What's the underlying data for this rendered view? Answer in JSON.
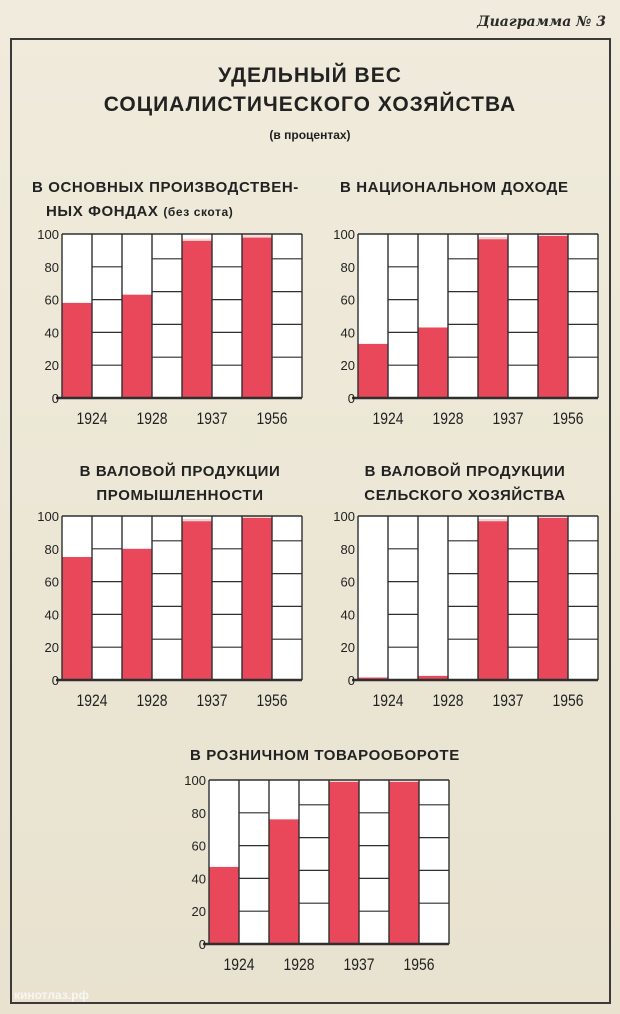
{
  "header": {
    "diagram_number": "Диаграмма № 3",
    "title_line1": "УДЕЛЬНЫЙ ВЕС",
    "title_line2": "СОЦИАЛИСТИЧЕСКОГО ХОЗЯЙСТВА",
    "subtitle": "(в процентах)"
  },
  "watermark": "кинотлаз.рф",
  "colors": {
    "bar": "#e8485a",
    "bar_top": "#f7d6d6",
    "grid": "#2f2f2f",
    "paper": "#ffffff"
  },
  "chart_data": [
    {
      "type": "bar",
      "title_lines": [
        "В ОСНОВНЫХ ПРОИЗВОДСТВЕН-",
        "НЫХ  ФОНДАХ",
        "(без скота)"
      ],
      "categories": [
        "1924",
        "1928",
        "1937",
        "1956"
      ],
      "values": [
        58,
        63,
        97,
        99
      ],
      "ylim": [
        0,
        100
      ],
      "yticks": [
        "0",
        "20",
        "40",
        "60",
        "80",
        "100"
      ],
      "grid": true
    },
    {
      "type": "bar",
      "title_lines": [
        "В НАЦИОНАЛЬНОМ ДОХОДЕ"
      ],
      "categories": [
        "1924",
        "1928",
        "1937",
        "1956"
      ],
      "values": [
        33,
        43,
        98,
        100
      ],
      "ylim": [
        0,
        100
      ],
      "yticks": [
        "0",
        "20",
        "40",
        "60",
        "80",
        "100"
      ],
      "grid": true
    },
    {
      "type": "bar",
      "title_lines": [
        "В ВАЛОВОЙ ПРОДУКЦИИ",
        "ПРОМЫШЛЕННОСТИ"
      ],
      "categories": [
        "1924",
        "1928",
        "1937",
        "1956"
      ],
      "values": [
        75,
        80,
        98,
        100
      ],
      "ylim": [
        0,
        100
      ],
      "yticks": [
        "0",
        "20",
        "40",
        "60",
        "80",
        "100"
      ],
      "grid": true
    },
    {
      "type": "bar",
      "title_lines": [
        "В ВАЛОВОЙ ПРОДУКЦИИ",
        "СЕЛЬСКОГО ХОЗЯЙСТВА"
      ],
      "categories": [
        "1924",
        "1928",
        "1937",
        "1956"
      ],
      "values": [
        1.5,
        2.5,
        98,
        100
      ],
      "ylim": [
        0,
        100
      ],
      "yticks": [
        "0",
        "20",
        "40",
        "60",
        "80",
        "100"
      ],
      "grid": true
    },
    {
      "type": "bar",
      "title_lines": [
        "В РОЗНИЧНОМ ТОВАРООБОРОТЕ"
      ],
      "categories": [
        "1924",
        "1928",
        "1937",
        "1956"
      ],
      "values": [
        47,
        76,
        100,
        100
      ],
      "ylim": [
        0,
        100
      ],
      "yticks": [
        "0",
        "20",
        "40",
        "60",
        "80",
        "100"
      ],
      "grid": true
    }
  ]
}
